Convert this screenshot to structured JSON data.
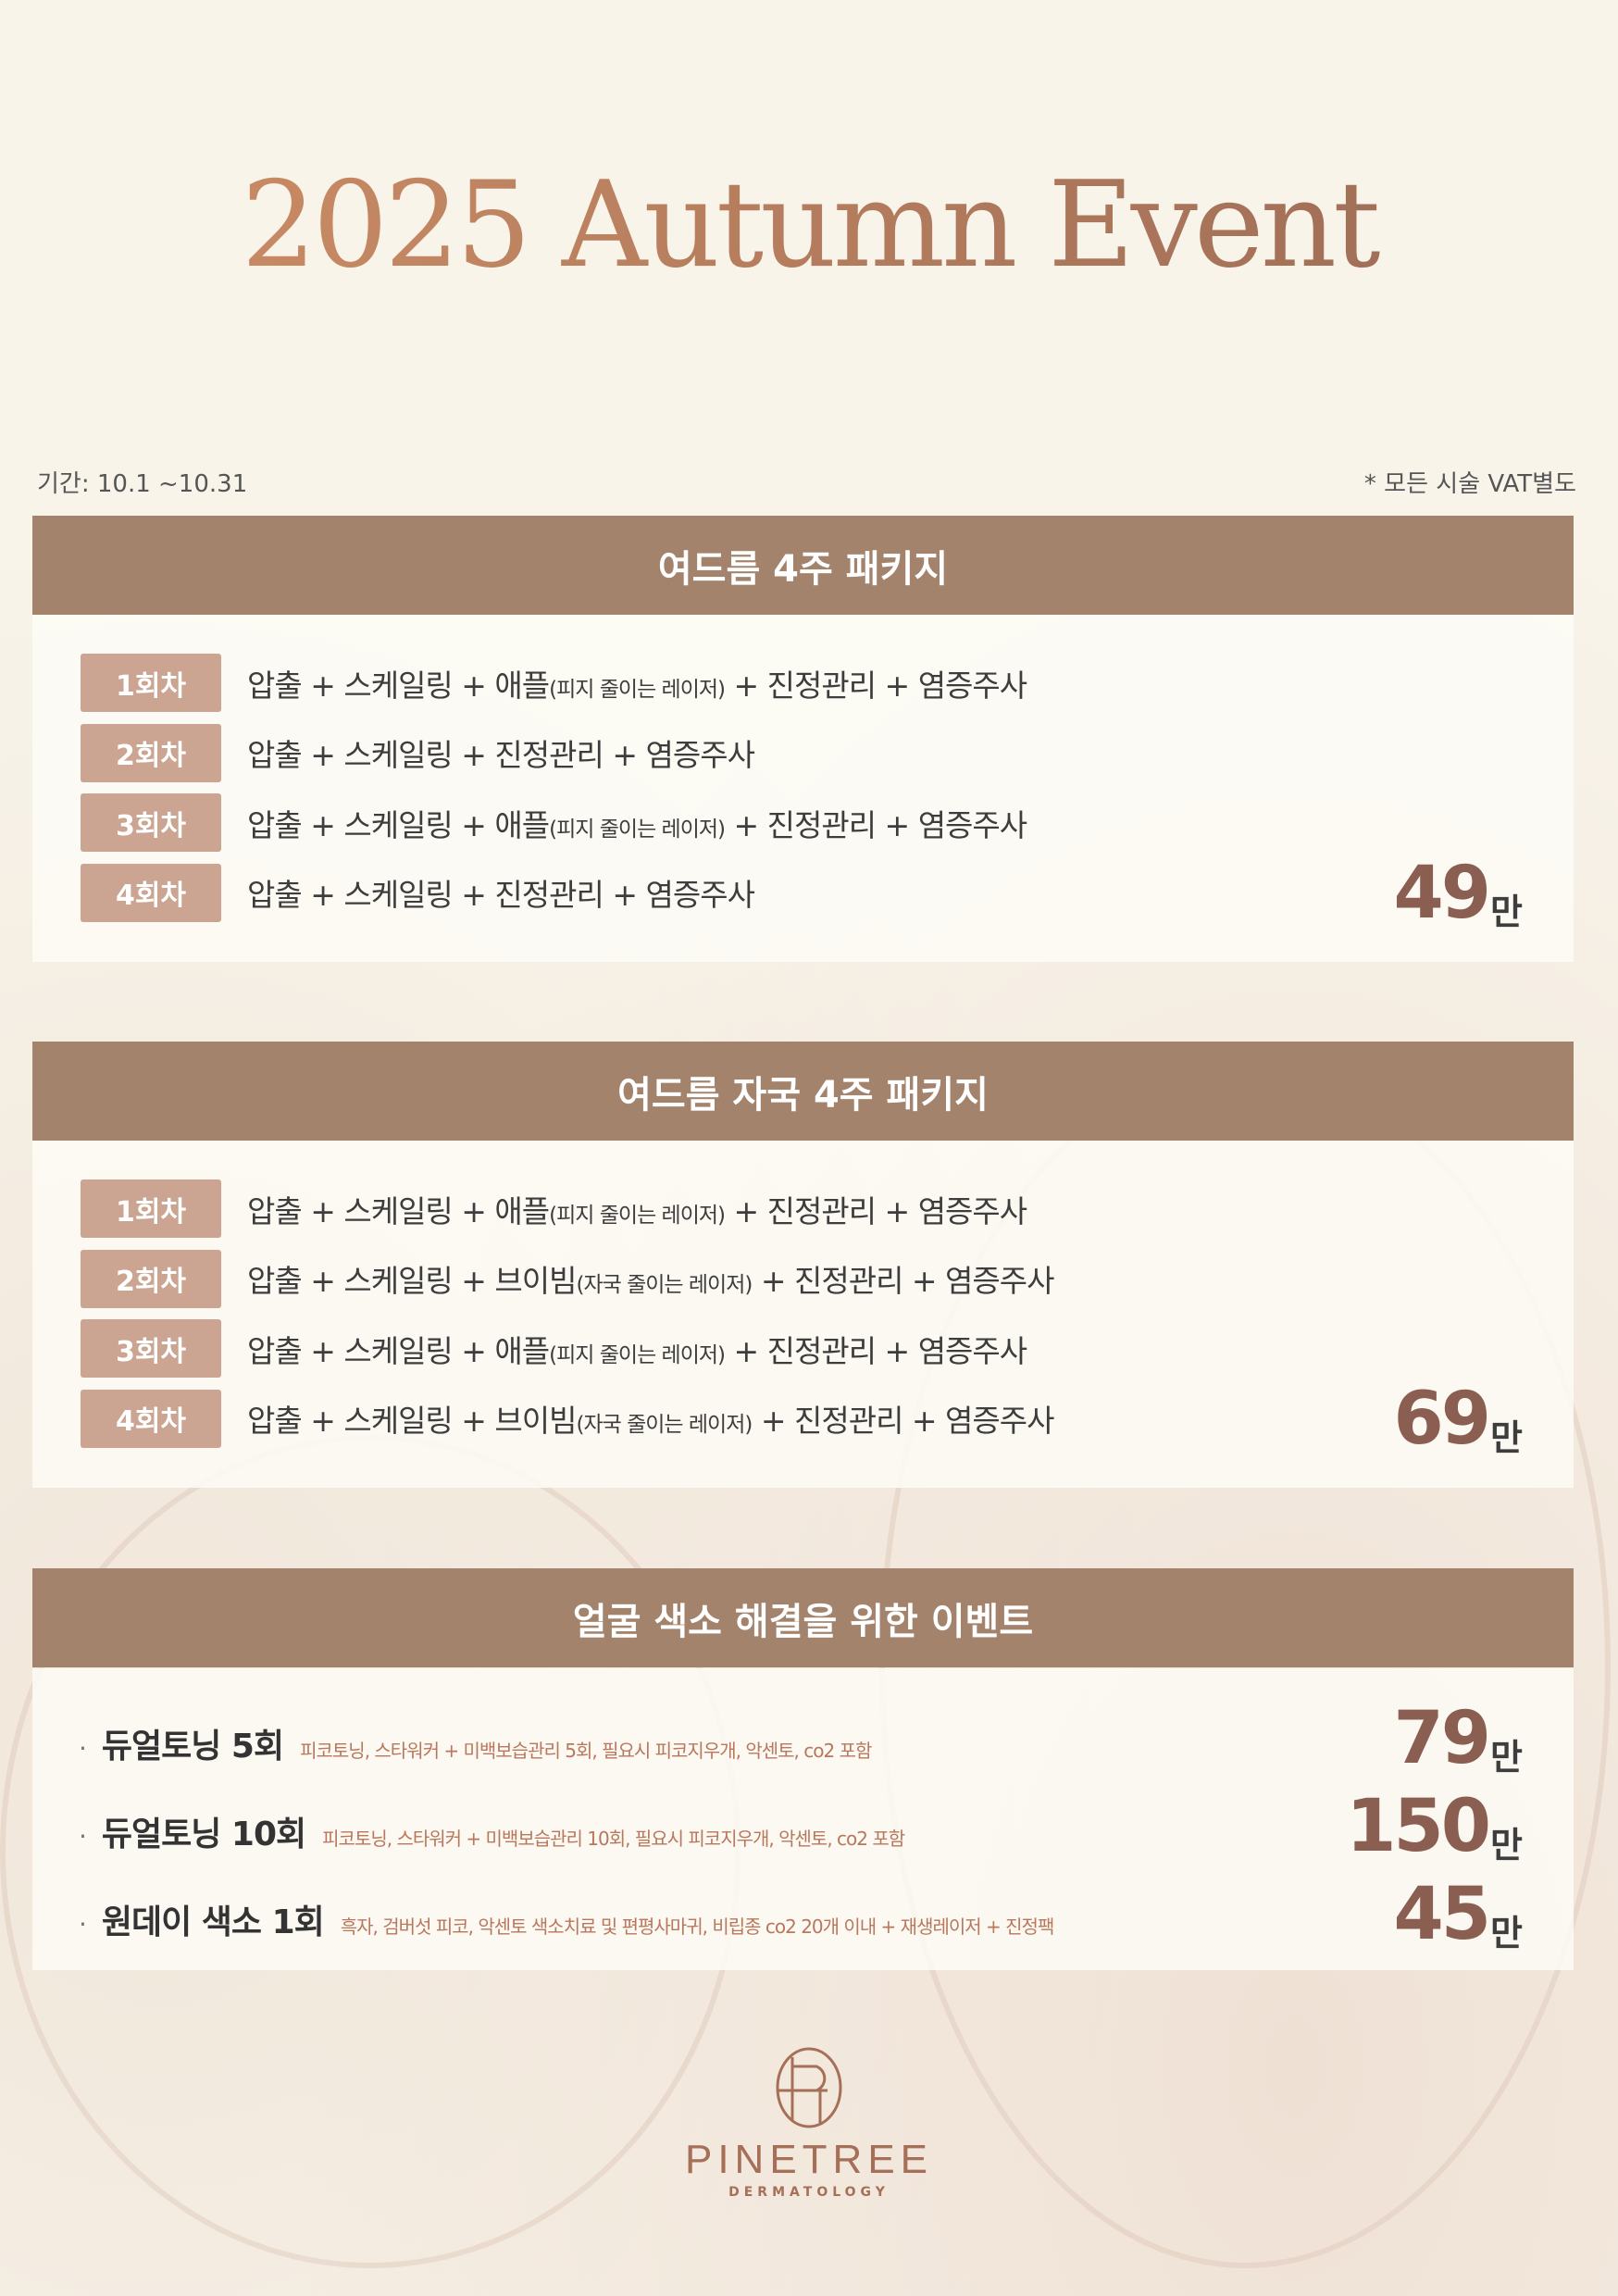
{
  "title": "2025 Autumn Event",
  "period": "기간: 10.1 ~10.31",
  "vat_note": "* 모든 시술 VAT별도",
  "packages": [
    {
      "header": "여드름 4주 패키지",
      "price": "49",
      "unit": "만",
      "sessions": [
        {
          "badge": "1회차",
          "main": "압출 + 스케일링 + 애플",
          "note": "(피지 줄이는 레이저)",
          "rest": " + 진정관리 + 염증주사"
        },
        {
          "badge": "2회차",
          "main": "압출 + 스케일링 + 진정관리 + 염증주사",
          "note": "",
          "rest": ""
        },
        {
          "badge": "3회차",
          "main": "압출 + 스케일링 + 애플",
          "note": "(피지 줄이는 레이저)",
          "rest": " + 진정관리 + 염증주사"
        },
        {
          "badge": "4회차",
          "main": "압출 + 스케일링 + 진정관리 + 염증주사",
          "note": "",
          "rest": ""
        }
      ]
    },
    {
      "header": "여드름 자국 4주 패키지",
      "price": "69",
      "unit": "만",
      "sessions": [
        {
          "badge": "1회차",
          "main": "압출 + 스케일링 + 애플",
          "note": "(피지 줄이는 레이저)",
          "rest": " + 진정관리 + 염증주사"
        },
        {
          "badge": "2회차",
          "main": "압출 + 스케일링 + 브이빔",
          "note": "(자국 줄이는 레이저)",
          "rest": " + 진정관리 + 염증주사"
        },
        {
          "badge": "3회차",
          "main": "압출 + 스케일링 + 애플",
          "note": "(피지 줄이는 레이저)",
          "rest": " + 진정관리 + 염증주사"
        },
        {
          "badge": "4회차",
          "main": "압출 + 스케일링 + 브이빔",
          "note": "(자국 줄이는 레이저)",
          "rest": " + 진정관리 + 염증주사"
        }
      ]
    }
  ],
  "pigment": {
    "header": "얼굴 색소 해결을 위한 이벤트",
    "items": [
      {
        "bullet": "·",
        "name": "듀얼토닝 5회",
        "desc": "피코토닝, 스타워커 + 미백보습관리 5회, 필요시 피코지우개, 악센토, co2 포함",
        "price": "79",
        "unit": "만"
      },
      {
        "bullet": "·",
        "name": "듀얼토닝 10회",
        "desc": "피코토닝, 스타워커 + 미백보습관리 10회, 필요시 피코지우개, 악센토, co2 포함",
        "price": "150",
        "unit": "만"
      },
      {
        "bullet": "·",
        "name": "원데이 색소 1회",
        "desc": "흑자, 검버섯 피코, 악센토 색소치료 및 편평사마귀, 비립종 co2 20개 이내 + 재생레이저 + 진정팩",
        "price": "45",
        "unit": "만"
      }
    ]
  },
  "logo": {
    "name": "PINETREE",
    "sub": "DERMATOLOGY"
  },
  "colors": {
    "header": "#a4836d",
    "badge": "#cba592",
    "price": "#8a5e50",
    "accent": "#b9775c"
  }
}
